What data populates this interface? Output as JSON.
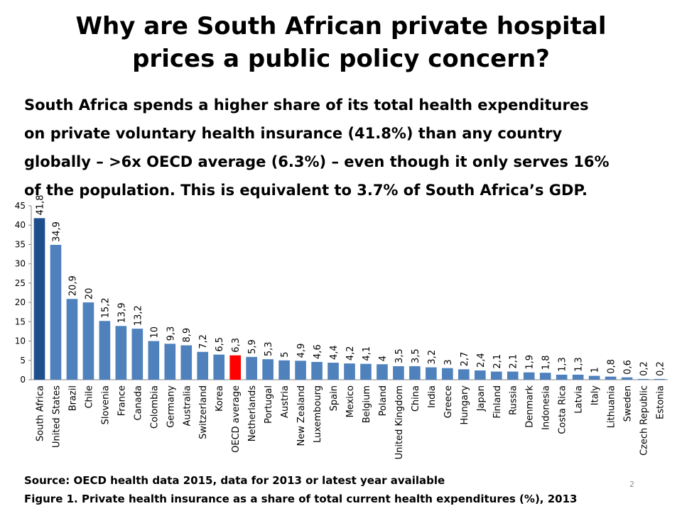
{
  "title_line1": "Why are South African private hospital",
  "title_line2": "prices a public policy concern?",
  "subtitle_line1": "South Africa spends a higher share of its total health expenditures",
  "subtitle_line2": "on private voluntary health insurance (41.8%) than any country",
  "subtitle_line3": "globally – >6x OECD average (6.3%) – even though it only serves 16%",
  "subtitle_line4": "of the population. This is equivalent to 3.7% of South Africa’s GDP.",
  "source": "Source: OECD health data 2015, data for 2013 or latest year available",
  "caption": "Figure 1. Private health insurance as a share of total current health expenditures (%), 2013",
  "page_number": "2",
  "colors": {
    "default_bar": "#4f81bd",
    "south_africa_bar": "#1f4e8c",
    "oecd_bar": "#ff0000"
  },
  "chart_data": {
    "type": "bar",
    "ylim": [
      0,
      45
    ],
    "yticks": [
      "0",
      "5",
      "10",
      "15",
      "20",
      "25",
      "30",
      "35",
      "40",
      "45"
    ],
    "categories": [
      "South Africa",
      "United States",
      "Brazil",
      "Chile",
      "Slovenia",
      "France",
      "Canada",
      "Colombia",
      "Germany",
      "Australia",
      "Switzerland",
      "Korea",
      "OECD average",
      "Netherlands",
      "Portugal",
      "Austria",
      "New Zealand",
      "Luxembourg",
      "Spain",
      "Mexico",
      "Belgium",
      "Poland",
      "United Kingdom",
      "China",
      "India",
      "Greece",
      "Hungary",
      "Japan",
      "Finland",
      "Russia",
      "Denmark",
      "Indonesia",
      "Costa Rica",
      "Latvia",
      "Italy",
      "Lithuania",
      "Sweden",
      "Czech Republic",
      "Estonia"
    ],
    "values": [
      41.8,
      34.9,
      20.9,
      20,
      15.2,
      13.9,
      13.2,
      10,
      9.3,
      8.9,
      7.2,
      6.5,
      6.3,
      5.9,
      5.3,
      5,
      4.9,
      4.6,
      4.4,
      4.2,
      4.1,
      4,
      3.5,
      3.5,
      3.2,
      3,
      2.7,
      2.4,
      2.1,
      2.1,
      1.9,
      1.8,
      1.3,
      1.3,
      1,
      0.8,
      0.6,
      0.2,
      0.2
    ],
    "data_labels": [
      "41,8",
      "34,9",
      "20,9",
      "20",
      "15,2",
      "13,9",
      "13,2",
      "10",
      "9,3",
      "8,9",
      "7,2",
      "6,5",
      "6,3",
      "5,9",
      "5,3",
      "5",
      "4,9",
      "4,6",
      "4,4",
      "4,2",
      "4,1",
      "4",
      "3,5",
      "3,5",
      "3,2",
      "3",
      "2,7",
      "2,4",
      "2,1",
      "2,1",
      "1,9",
      "1,8",
      "1,3",
      "1,3",
      "1",
      "0,8",
      "0,6",
      "0,2",
      "0,2"
    ],
    "highlight": {
      "South Africa": "south_africa_bar",
      "OECD average": "oecd_bar"
    }
  }
}
